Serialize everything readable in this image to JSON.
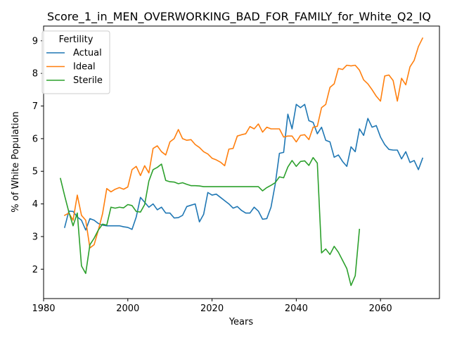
{
  "chart_data": {
    "type": "line",
    "title": "Score_1_in_MEN_OVERWORKING_BAD_FOR_FAMILY_for_White_Q2_IQ",
    "xlabel": "Years",
    "ylabel": "% of White Population",
    "xlim": [
      1980,
      2074
    ],
    "ylim": [
      1.1,
      9.45
    ],
    "xticks": [
      1980,
      2000,
      2020,
      2040,
      2060
    ],
    "yticks": [
      2,
      3,
      4,
      5,
      6,
      7,
      8,
      9
    ],
    "grid": false,
    "legend": {
      "title": "Fertility",
      "placement": "top-left"
    },
    "series": [
      {
        "name": "Actual",
        "color": "#1f77b4",
        "points": [
          [
            1985,
            3.28
          ],
          [
            1986,
            3.78
          ],
          [
            1987,
            3.77
          ],
          [
            1988,
            3.6
          ],
          [
            1989,
            3.5
          ],
          [
            1990,
            3.2
          ],
          [
            1991,
            3.55
          ],
          [
            1992,
            3.5
          ],
          [
            1993,
            3.4
          ],
          [
            1994,
            3.35
          ],
          [
            1995,
            3.33
          ],
          [
            1996,
            3.33
          ],
          [
            1997,
            3.33
          ],
          [
            1998,
            3.33
          ],
          [
            1999,
            3.3
          ],
          [
            2000,
            3.28
          ],
          [
            2001,
            3.22
          ],
          [
            2002,
            3.6
          ],
          [
            2003,
            4.2
          ],
          [
            2004,
            4.05
          ],
          [
            2005,
            3.9
          ],
          [
            2006,
            4.0
          ],
          [
            2007,
            3.82
          ],
          [
            2008,
            3.9
          ],
          [
            2009,
            3.72
          ],
          [
            2010,
            3.72
          ],
          [
            2011,
            3.57
          ],
          [
            2012,
            3.58
          ],
          [
            2013,
            3.65
          ],
          [
            2014,
            3.92
          ],
          [
            2015,
            3.96
          ],
          [
            2016,
            4.0
          ],
          [
            2017,
            3.45
          ],
          [
            2018,
            3.68
          ],
          [
            2019,
            4.35
          ],
          [
            2020,
            4.27
          ],
          [
            2021,
            4.3
          ],
          [
            2022,
            4.2
          ],
          [
            2023,
            4.1
          ],
          [
            2024,
            4.0
          ],
          [
            2025,
            3.87
          ],
          [
            2026,
            3.92
          ],
          [
            2027,
            3.8
          ],
          [
            2028,
            3.72
          ],
          [
            2029,
            3.72
          ],
          [
            2030,
            3.9
          ],
          [
            2031,
            3.78
          ],
          [
            2032,
            3.53
          ],
          [
            2033,
            3.55
          ],
          [
            2034,
            3.9
          ],
          [
            2035,
            4.6
          ],
          [
            2036,
            5.55
          ],
          [
            2037,
            5.58
          ],
          [
            2038,
            6.75
          ],
          [
            2039,
            6.3
          ],
          [
            2040,
            7.05
          ],
          [
            2041,
            6.95
          ],
          [
            2042,
            7.05
          ],
          [
            2043,
            6.55
          ],
          [
            2044,
            6.5
          ],
          [
            2045,
            6.15
          ],
          [
            2046,
            6.35
          ],
          [
            2047,
            5.95
          ],
          [
            2048,
            5.9
          ],
          [
            2049,
            5.43
          ],
          [
            2050,
            5.5
          ],
          [
            2051,
            5.3
          ],
          [
            2052,
            5.15
          ],
          [
            2053,
            5.75
          ],
          [
            2054,
            5.6
          ],
          [
            2055,
            6.3
          ],
          [
            2056,
            6.1
          ],
          [
            2057,
            6.62
          ],
          [
            2058,
            6.35
          ],
          [
            2059,
            6.4
          ],
          [
            2060,
            6.05
          ],
          [
            2061,
            5.82
          ],
          [
            2062,
            5.67
          ],
          [
            2063,
            5.65
          ],
          [
            2064,
            5.65
          ],
          [
            2065,
            5.38
          ],
          [
            2066,
            5.6
          ],
          [
            2067,
            5.27
          ],
          [
            2068,
            5.33
          ],
          [
            2069,
            5.05
          ],
          [
            2070,
            5.4
          ]
        ]
      },
      {
        "name": "Ideal",
        "color": "#ff7f0e",
        "points": [
          [
            1985,
            3.65
          ],
          [
            1986,
            3.72
          ],
          [
            1987,
            3.5
          ],
          [
            1988,
            4.27
          ],
          [
            1989,
            3.65
          ],
          [
            1990,
            3.5
          ],
          [
            1991,
            2.65
          ],
          [
            1992,
            2.75
          ],
          [
            1993,
            3.2
          ],
          [
            1994,
            3.7
          ],
          [
            1995,
            4.47
          ],
          [
            1996,
            4.37
          ],
          [
            1997,
            4.45
          ],
          [
            1998,
            4.5
          ],
          [
            1999,
            4.45
          ],
          [
            2000,
            4.52
          ],
          [
            2001,
            5.05
          ],
          [
            2002,
            5.15
          ],
          [
            2003,
            4.87
          ],
          [
            2004,
            5.17
          ],
          [
            2005,
            4.95
          ],
          [
            2006,
            5.7
          ],
          [
            2007,
            5.78
          ],
          [
            2008,
            5.6
          ],
          [
            2009,
            5.5
          ],
          [
            2010,
            5.9
          ],
          [
            2011,
            6.0
          ],
          [
            2012,
            6.28
          ],
          [
            2013,
            6.0
          ],
          [
            2014,
            5.95
          ],
          [
            2015,
            5.97
          ],
          [
            2016,
            5.82
          ],
          [
            2017,
            5.73
          ],
          [
            2018,
            5.6
          ],
          [
            2019,
            5.53
          ],
          [
            2020,
            5.4
          ],
          [
            2021,
            5.35
          ],
          [
            2022,
            5.28
          ],
          [
            2023,
            5.17
          ],
          [
            2024,
            5.68
          ],
          [
            2025,
            5.7
          ],
          [
            2026,
            6.08
          ],
          [
            2027,
            6.12
          ],
          [
            2028,
            6.15
          ],
          [
            2029,
            6.37
          ],
          [
            2030,
            6.3
          ],
          [
            2031,
            6.45
          ],
          [
            2032,
            6.2
          ],
          [
            2033,
            6.35
          ],
          [
            2034,
            6.3
          ],
          [
            2035,
            6.3
          ],
          [
            2036,
            6.3
          ],
          [
            2037,
            6.05
          ],
          [
            2038,
            6.08
          ],
          [
            2039,
            6.08
          ],
          [
            2040,
            5.9
          ],
          [
            2041,
            6.1
          ],
          [
            2042,
            6.12
          ],
          [
            2043,
            5.97
          ],
          [
            2044,
            6.35
          ],
          [
            2045,
            6.38
          ],
          [
            2046,
            6.95
          ],
          [
            2047,
            7.05
          ],
          [
            2048,
            7.57
          ],
          [
            2049,
            7.68
          ],
          [
            2050,
            8.15
          ],
          [
            2051,
            8.12
          ],
          [
            2052,
            8.25
          ],
          [
            2053,
            8.23
          ],
          [
            2054,
            8.25
          ],
          [
            2055,
            8.1
          ],
          [
            2056,
            7.8
          ],
          [
            2057,
            7.68
          ],
          [
            2058,
            7.5
          ],
          [
            2059,
            7.3
          ],
          [
            2060,
            7.15
          ],
          [
            2061,
            7.92
          ],
          [
            2062,
            7.95
          ],
          [
            2063,
            7.78
          ],
          [
            2064,
            7.15
          ],
          [
            2065,
            7.85
          ],
          [
            2066,
            7.65
          ],
          [
            2067,
            8.2
          ],
          [
            2068,
            8.4
          ],
          [
            2069,
            8.82
          ],
          [
            2070,
            9.08
          ]
        ]
      },
      {
        "name": "Sterile",
        "color": "#2ca02c",
        "points": [
          [
            1984,
            4.78
          ],
          [
            1985,
            4.25
          ],
          [
            1986,
            3.75
          ],
          [
            1987,
            3.33
          ],
          [
            1988,
            3.72
          ],
          [
            1989,
            2.1
          ],
          [
            1990,
            1.87
          ],
          [
            1991,
            2.75
          ],
          [
            1992,
            2.95
          ],
          [
            1993,
            3.2
          ],
          [
            1994,
            3.38
          ],
          [
            1995,
            3.35
          ],
          [
            1996,
            3.9
          ],
          [
            1997,
            3.87
          ],
          [
            1998,
            3.9
          ],
          [
            1999,
            3.88
          ],
          [
            2000,
            3.98
          ],
          [
            2001,
            3.95
          ],
          [
            2002,
            3.77
          ],
          [
            2003,
            3.75
          ],
          [
            2004,
            3.98
          ],
          [
            2005,
            4.7
          ],
          [
            2006,
            5.05
          ],
          [
            2007,
            5.12
          ],
          [
            2008,
            5.22
          ],
          [
            2009,
            4.72
          ],
          [
            2010,
            4.68
          ],
          [
            2011,
            4.67
          ],
          [
            2012,
            4.62
          ],
          [
            2013,
            4.65
          ],
          [
            2014,
            4.6
          ],
          [
            2015,
            4.56
          ],
          [
            2016,
            4.56
          ],
          [
            2017,
            4.55
          ],
          [
            2018,
            4.53
          ],
          [
            2019,
            4.53
          ],
          [
            2020,
            4.53
          ],
          [
            2021,
            4.53
          ],
          [
            2022,
            4.53
          ],
          [
            2023,
            4.53
          ],
          [
            2024,
            4.53
          ],
          [
            2025,
            4.53
          ],
          [
            2026,
            4.53
          ],
          [
            2027,
            4.53
          ],
          [
            2028,
            4.53
          ],
          [
            2029,
            4.53
          ],
          [
            2030,
            4.53
          ],
          [
            2031,
            4.53
          ],
          [
            2032,
            4.4
          ],
          [
            2033,
            4.5
          ],
          [
            2034,
            4.57
          ],
          [
            2035,
            4.65
          ],
          [
            2036,
            4.83
          ],
          [
            2037,
            4.8
          ],
          [
            2038,
            5.13
          ],
          [
            2039,
            5.33
          ],
          [
            2040,
            5.15
          ],
          [
            2041,
            5.3
          ],
          [
            2042,
            5.32
          ],
          [
            2043,
            5.18
          ],
          [
            2044,
            5.42
          ],
          [
            2045,
            5.25
          ],
          [
            2046,
            2.5
          ],
          [
            2047,
            2.62
          ],
          [
            2048,
            2.45
          ],
          [
            2049,
            2.7
          ],
          [
            2050,
            2.52
          ],
          [
            2051,
            2.27
          ],
          [
            2052,
            2.02
          ],
          [
            2053,
            1.5
          ],
          [
            2054,
            1.8
          ],
          [
            2055,
            3.22
          ]
        ]
      }
    ]
  }
}
